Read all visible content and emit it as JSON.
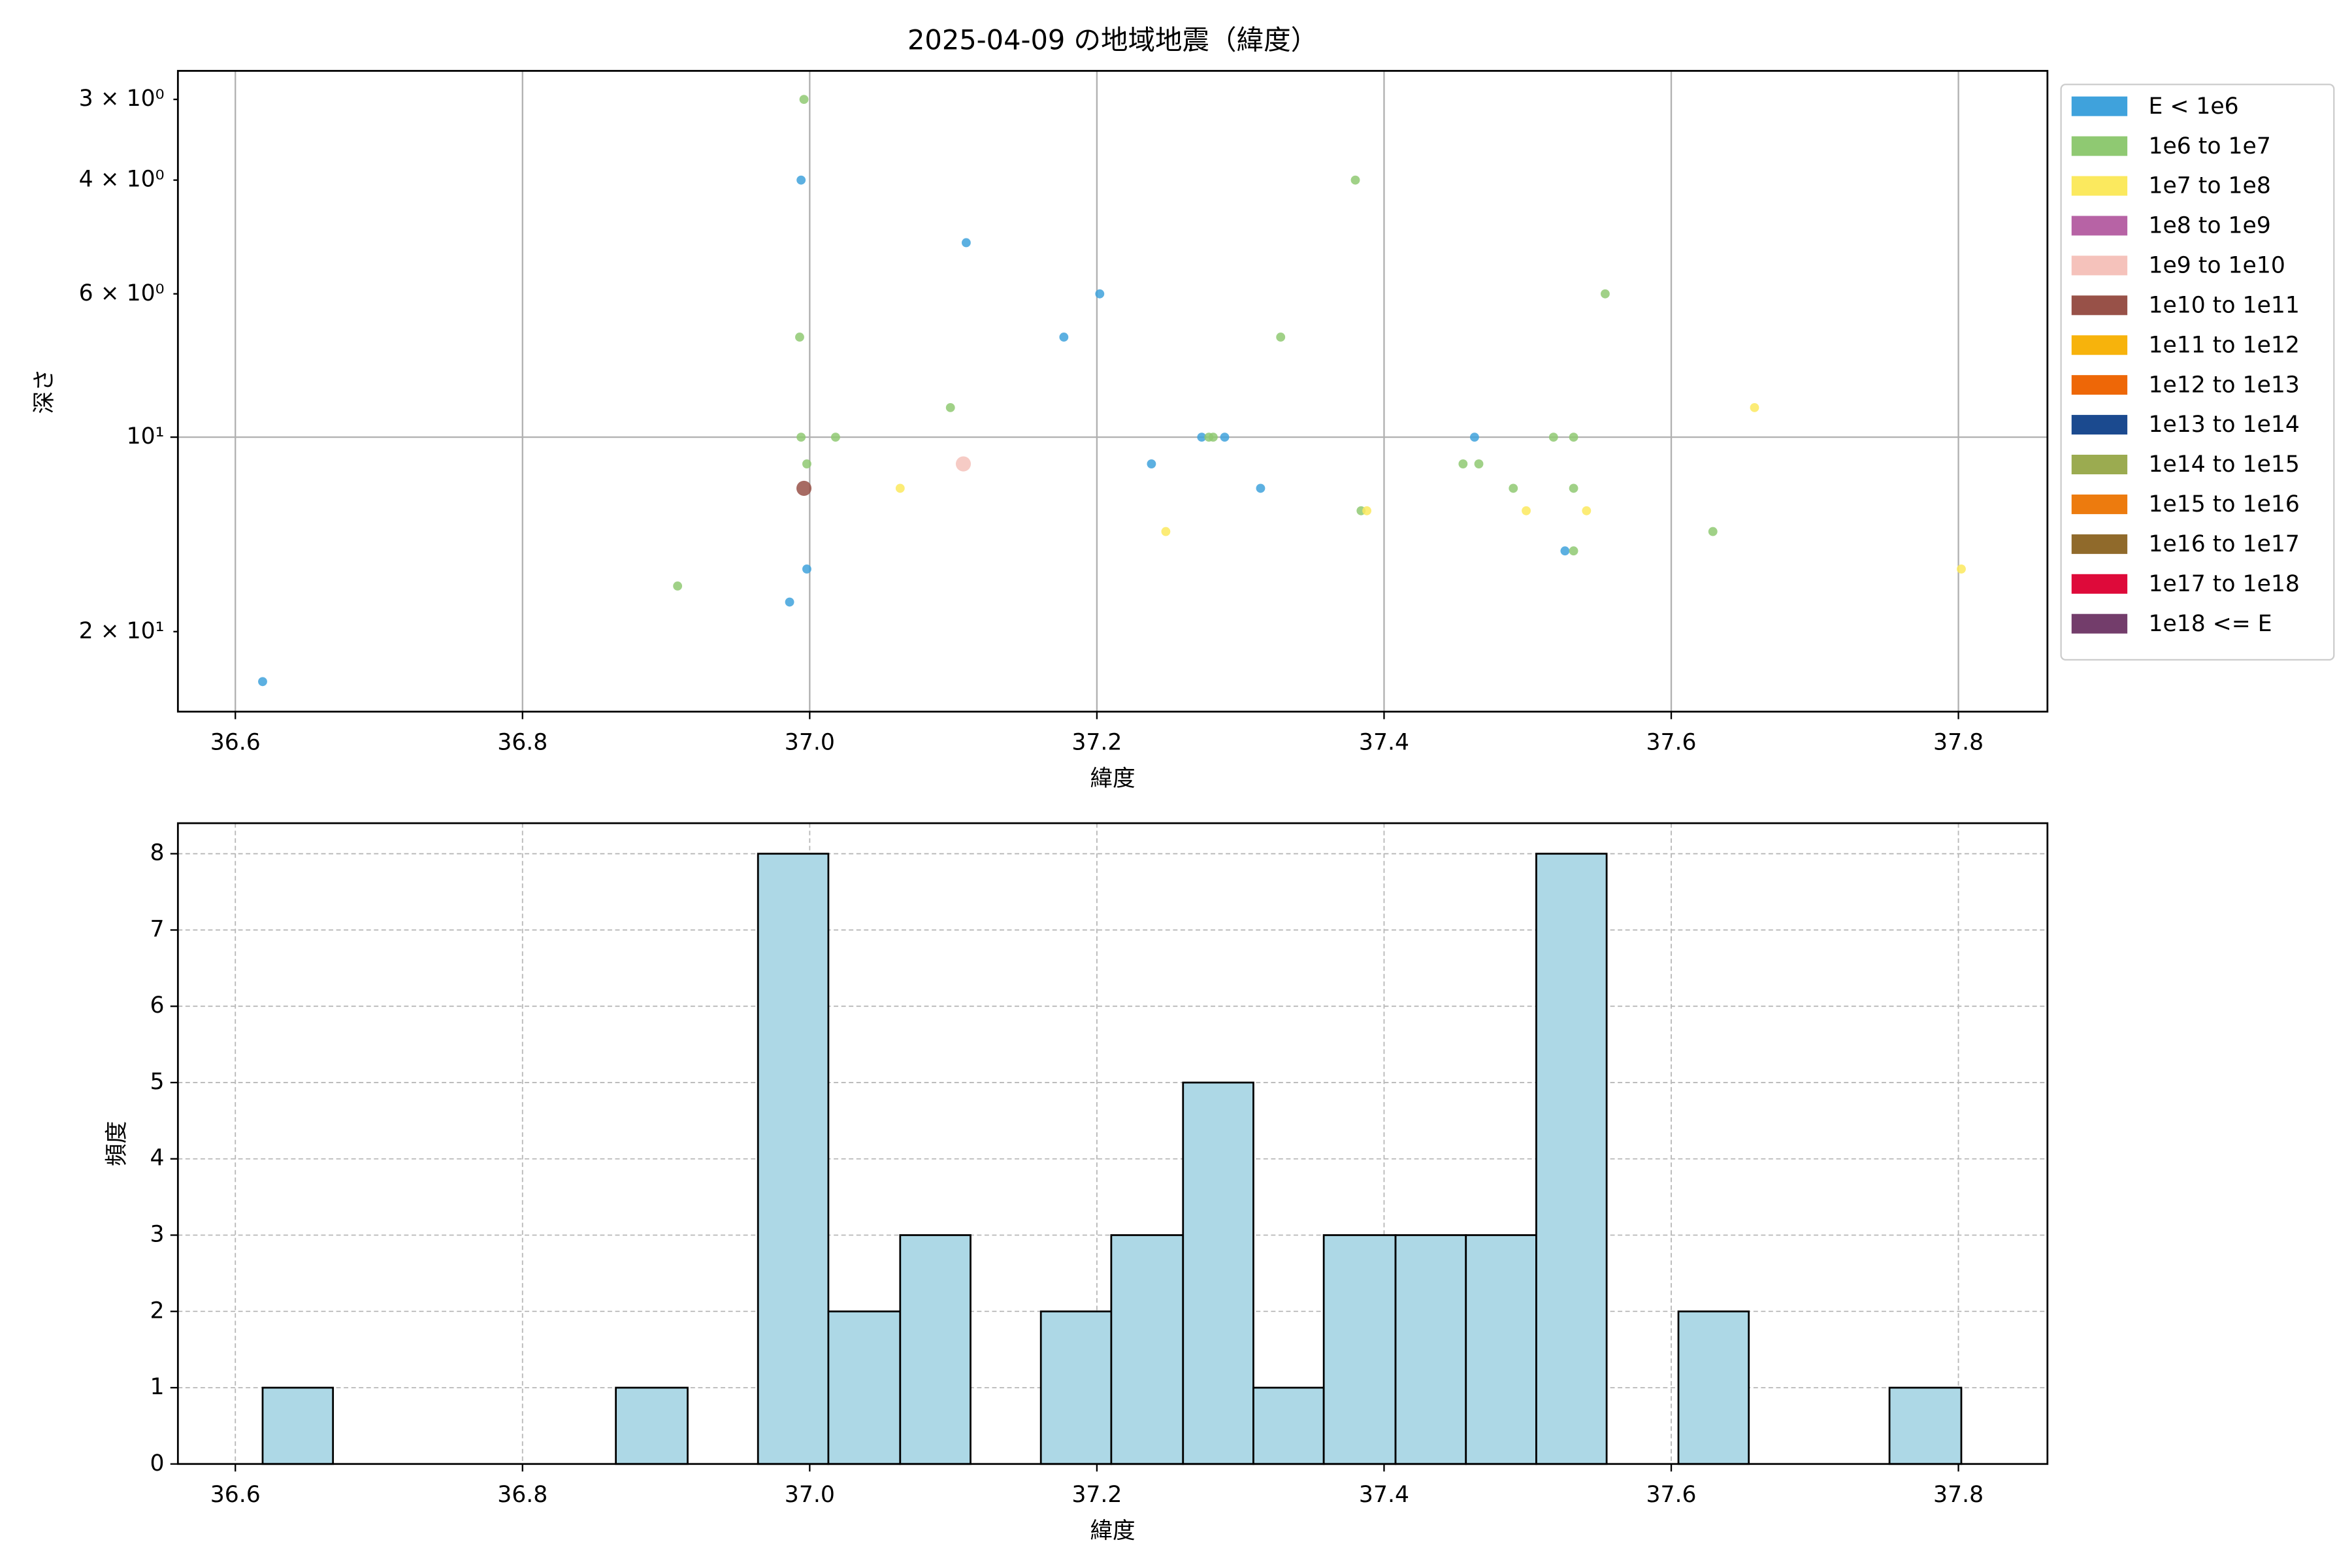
{
  "chart_data": [
    {
      "type": "scatter",
      "title": "2025-04-09 の地域地震（緯度）",
      "xlabel": "緯度",
      "ylabel": "深さ",
      "xlim": [
        36.56,
        37.862
      ],
      "xticks": [
        36.6,
        36.8,
        {
          "value": 37,
          "label": "37.0"
        },
        37.2,
        37.4,
        37.6,
        37.8
      ],
      "ylim": [
        2.71,
        26.6
      ],
      "yscale": "log",
      "y_inverted": true,
      "yticks": [
        {
          "value": 3,
          "label": "3 × 10⁰"
        },
        {
          "value": 4,
          "label": "4 × 10⁰"
        },
        {
          "value": 6,
          "label": "6 × 10⁰"
        },
        {
          "value": 10,
          "label": "10¹"
        },
        {
          "value": 20,
          "label": "2 × 10¹"
        }
      ],
      "grid": true,
      "legend": "outside right",
      "series": [
        {
          "name": "E < 1e6",
          "color": "#3fa2dc",
          "marker_size": 3,
          "x": [
            36.619,
            36.994,
            37.109,
            37.202,
            37.177,
            37.238,
            37.273,
            37.289,
            37.314,
            37.463,
            37.526,
            36.998,
            36.986
          ],
          "values": [
            23.9,
            4.0,
            5.0,
            6.0,
            7.0,
            11.0,
            10,
            10,
            12.0,
            10,
            15.0,
            16.0,
            18.0
          ]
        },
        {
          "name": "1e6 to 1e7",
          "color": "#8fc972",
          "marker_size": 3,
          "x": [
            36.996,
            37.38,
            37.554,
            37.328,
            36.993,
            37.098,
            36.994,
            37.018,
            37.278,
            37.281,
            36.998,
            37.455,
            37.466,
            37.518,
            37.532,
            37.49,
            37.532,
            37.384,
            37.629,
            37.532,
            36.908
          ],
          "values": [
            3.0,
            4.0,
            6.0,
            7.0,
            7.0,
            9.0,
            10,
            10,
            10,
            10,
            11,
            11,
            11,
            10,
            10,
            12,
            12,
            13.0,
            14.0,
            15,
            17.0
          ]
        },
        {
          "name": "1e7 to 1e8",
          "color": "#fbe95e",
          "marker_size": 3,
          "x": [
            37.063,
            37.248,
            37.388,
            37.499,
            37.541,
            37.658,
            37.802
          ],
          "values": [
            12,
            14,
            13,
            13,
            13,
            9,
            16
          ]
        },
        {
          "name": "1e8 to 1e9",
          "color": "#b763a5",
          "marker_size": 3,
          "x": [],
          "values": []
        },
        {
          "name": "1e9 to 1e10",
          "color": "#f5c2bb",
          "marker_size": 5,
          "x": [
            37.107
          ],
          "values": [
            11
          ]
        },
        {
          "name": "1e10 to 1e11",
          "color": "#985148",
          "marker_size": 5,
          "x": [
            36.996
          ],
          "values": [
            12
          ]
        },
        {
          "name": "1e11 to 1e12",
          "color": "#f7b30c",
          "marker_size": 5,
          "x": [],
          "values": []
        },
        {
          "name": "1e12 to 1e13",
          "color": "#ee6707",
          "marker_size": 5,
          "x": [],
          "values": []
        },
        {
          "name": "1e13 to 1e14",
          "color": "#1b4a8f",
          "marker_size": 5,
          "x": [],
          "values": []
        },
        {
          "name": "1e14 to 1e15",
          "color": "#9bab50",
          "marker_size": 5,
          "x": [],
          "values": []
        },
        {
          "name": "1e15 to 1e16",
          "color": "#ed7b0e",
          "marker_size": 5,
          "x": [],
          "values": []
        },
        {
          "name": "1e16 to 1e17",
          "color": "#906a2b",
          "marker_size": 5,
          "x": [],
          "values": []
        },
        {
          "name": "1e17 to 1e18",
          "color": "#de0a3a",
          "marker_size": 5,
          "x": [],
          "values": []
        },
        {
          "name": "1e18 <= E",
          "color": "#733d6b",
          "marker_size": 5,
          "x": [],
          "values": []
        }
      ]
    },
    {
      "type": "histogram",
      "xlabel": "緯度",
      "ylabel": "頻度",
      "color": "#add8e6",
      "edgecolor": "#000000",
      "xlim": [
        36.56,
        37.862
      ],
      "xticks": [
        36.6,
        36.8,
        {
          "value": 37,
          "label": "37.0"
        },
        37.2,
        37.4,
        37.6,
        37.8
      ],
      "ylim": [
        0,
        8.4
      ],
      "yticks": [
        0,
        1,
        2,
        3,
        4,
        5,
        6,
        7,
        8
      ],
      "grid": true,
      "bins": [
        36.619,
        36.668,
        36.718,
        36.767,
        36.816,
        36.865,
        36.915,
        36.964,
        37.013,
        37.063,
        37.112,
        37.161,
        37.21,
        37.26,
        37.309,
        37.358,
        37.408,
        37.457,
        37.506,
        37.555,
        37.605,
        37.654,
        37.703,
        37.752,
        37.802
      ],
      "values": [
        1,
        0,
        0,
        0,
        0,
        1,
        0,
        8,
        2,
        3,
        0,
        2,
        3,
        5,
        1,
        3,
        3,
        3,
        8,
        0,
        2,
        0,
        0,
        1
      ]
    }
  ]
}
